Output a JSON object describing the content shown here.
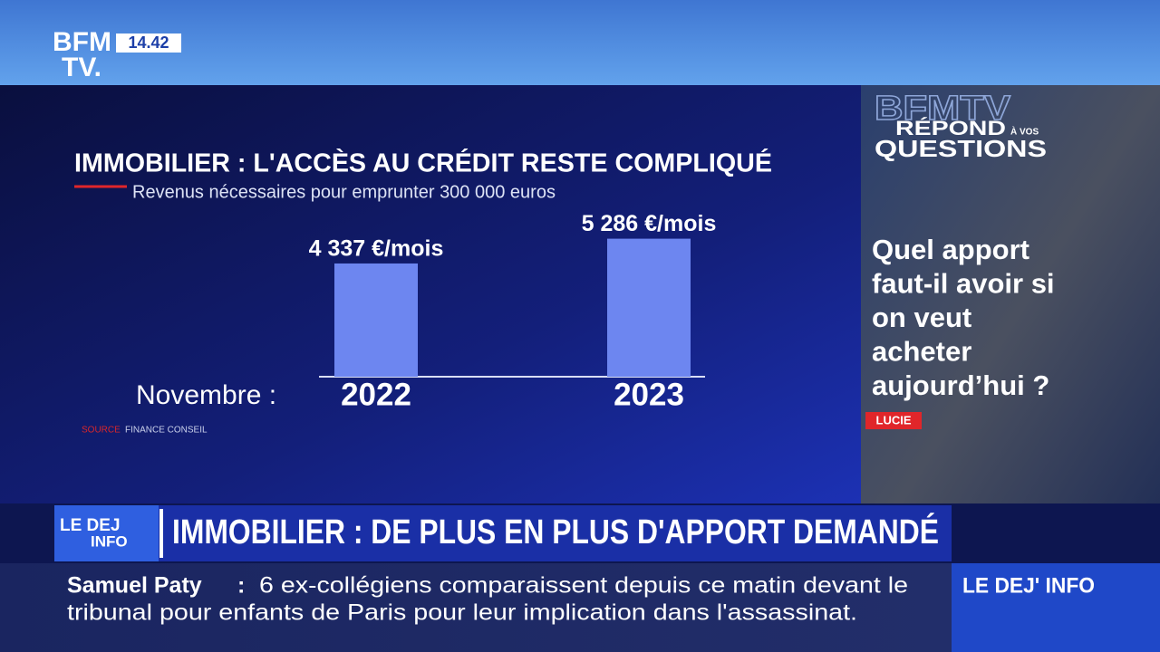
{
  "header": {
    "logo_top": "BFM",
    "logo_bottom": "TV.",
    "time": "14.42"
  },
  "chart_data": {
    "type": "bar",
    "title": "IMMOBILIER : L'ACCÈS AU CRÉDIT RESTE COMPLIQUÉ",
    "subtitle": "Revenus nécessaires pour emprunter 300 000 euros",
    "x_label": "Novembre :",
    "categories": [
      "2022",
      "2023"
    ],
    "values": [
      4337,
      5286
    ],
    "value_labels": [
      "4 337 €/mois",
      "5 286 €/mois"
    ],
    "color": "#6d86f0",
    "ylim": [
      0,
      6000
    ],
    "source_label": "SOURCE",
    "source": "FINANCE CONSEIL"
  },
  "side_panel": {
    "logo": {
      "brand": "BFMTV",
      "line1": "RÉPOND",
      "small": "À VOS",
      "line2": "QUESTIONS"
    },
    "question_lines": [
      "Quel apport",
      "faut-il avoir si",
      "on veut",
      "acheter",
      "aujourd’hui ?"
    ],
    "presenter": "LUCIE"
  },
  "headline": {
    "logo_top": "LE DEJ",
    "logo_bottom": "INFO",
    "text": "IMMOBILIER : DE PLUS EN PLUS D'APPORT DEMANDÉ"
  },
  "ticker": {
    "topic": "Samuel Paty",
    "separator": ":",
    "lines": [
      "6 ex-collégiens comparaissent depuis ce matin devant le",
      "tribunal pour enfants de Paris pour leur implication dans l'assassinat."
    ],
    "show": "LE DEJ' INFO"
  }
}
